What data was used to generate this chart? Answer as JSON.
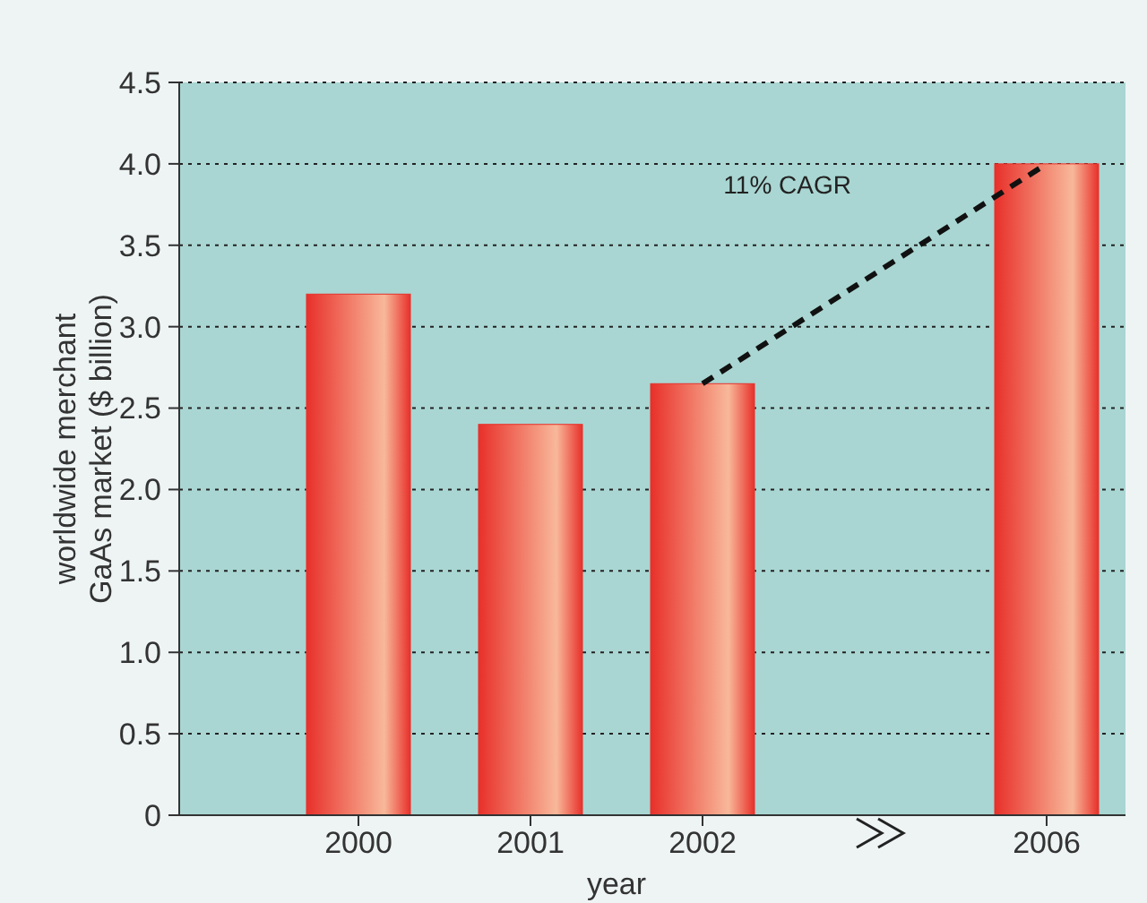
{
  "chart_data": {
    "type": "bar",
    "xlabel": "year",
    "ylabel": "worldwide merchant\nGaAs market ($ billion)",
    "categories": [
      "2000",
      "2001",
      "2002",
      null,
      "2006"
    ],
    "series": [
      {
        "color": "#e8302a",
        "values": [
          3.2,
          2.4,
          2.65,
          null,
          4.0
        ]
      },
      {
        "type": "line",
        "color": "#111111",
        "line_style": "dashed",
        "marker": "none",
        "values": [
          null,
          null,
          2.65,
          null,
          4.0
        ]
      }
    ],
    "ylim": [
      0,
      4.5
    ],
    "yticks": [
      0,
      {
        "value": 0.5,
        "label": "0.5"
      },
      {
        "value": 1,
        "label": "1.0"
      },
      {
        "value": 1.5,
        "label": "1.5"
      },
      {
        "value": 2,
        "label": "2.0"
      },
      {
        "value": 2.5,
        "label": "2.5"
      },
      {
        "value": 3,
        "label": "3.0"
      },
      {
        "value": 3.5,
        "label": "3.5"
      },
      {
        "value": 4,
        "label": "4.0"
      },
      {
        "value": 4.5,
        "label": "4.5"
      }
    ],
    "grid": "y",
    "annotations": [
      "11% CAGR"
    ]
  }
}
